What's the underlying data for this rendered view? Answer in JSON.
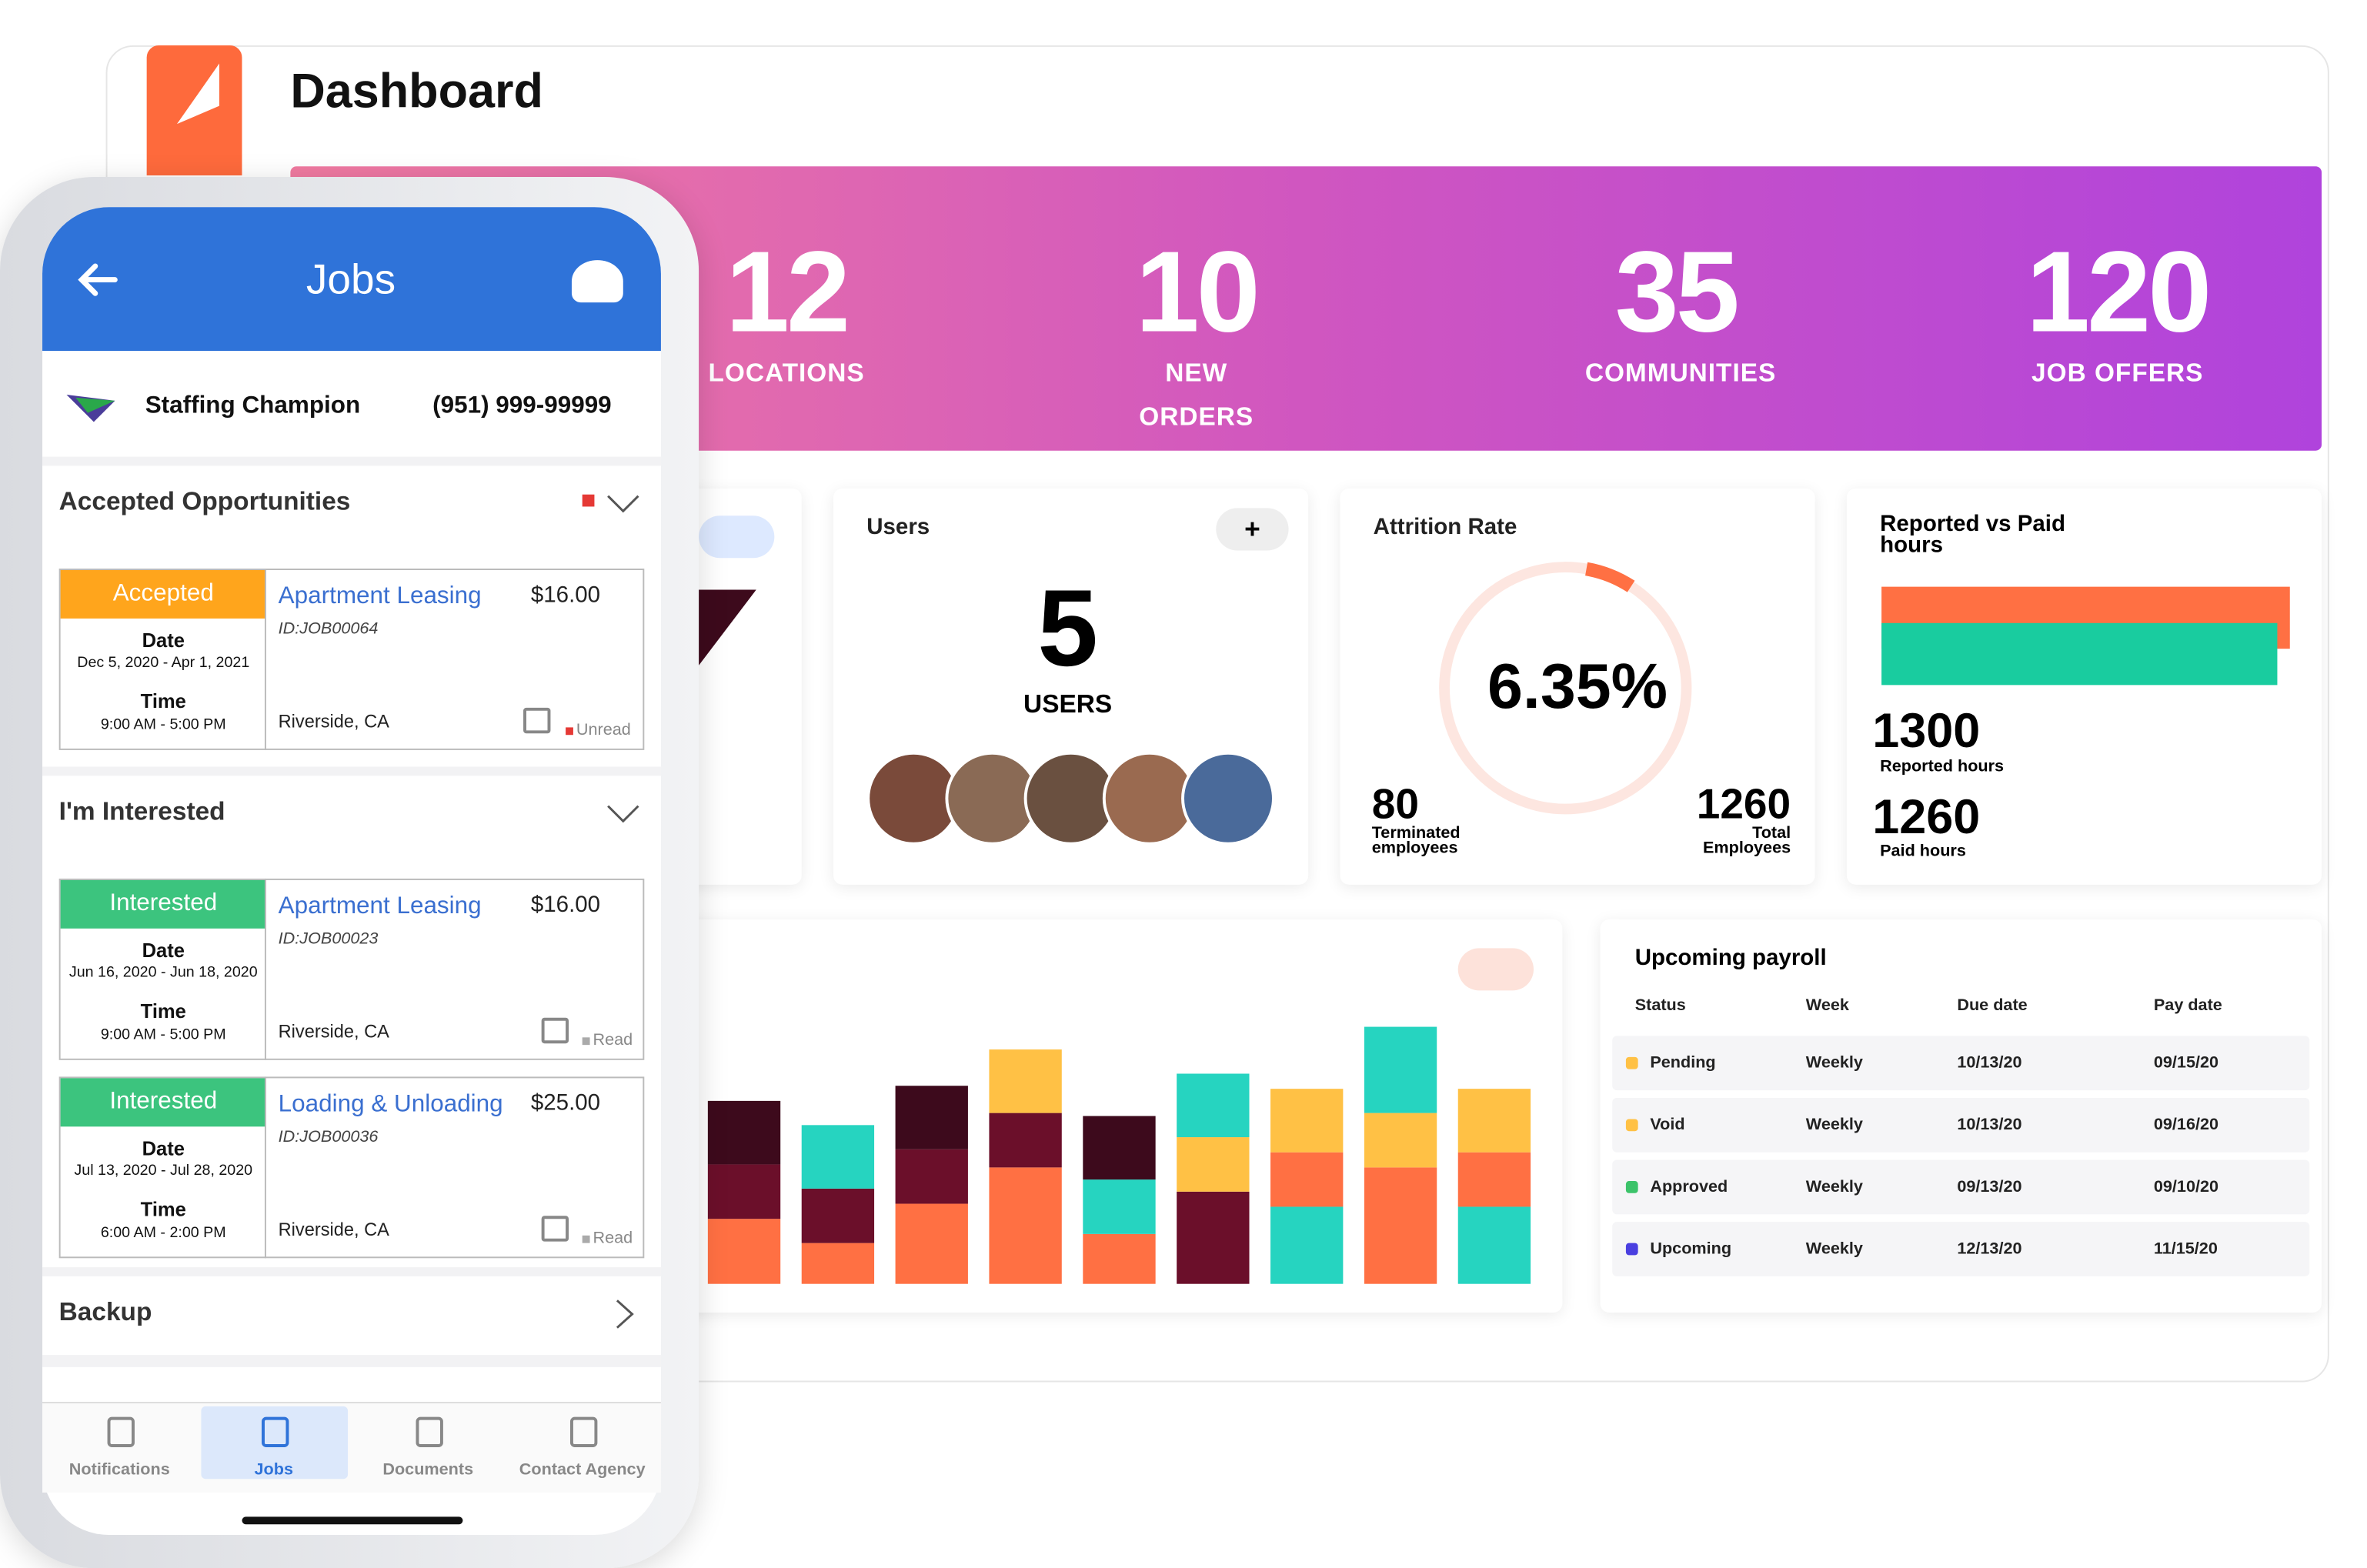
{
  "dashboard": {
    "title": "Dashboard",
    "stats": [
      {
        "value": 12,
        "label": "LOCATIONS"
      },
      {
        "value": 10,
        "label": "NEW ORDERS"
      },
      {
        "value": 35,
        "label": "COMMUNITIES"
      },
      {
        "value": 120,
        "label": "JOB OFFERS"
      }
    ],
    "users": {
      "title": "Users",
      "add": "+",
      "count": 5,
      "label": "USERS"
    },
    "attrition": {
      "title": "Attrition Rate",
      "rate": 6.35,
      "rate_label": "6.35%",
      "terminated": 80,
      "terminated_label": "Terminated employees",
      "total": 1260,
      "total_label": "Total Employees"
    },
    "hours": {
      "title": "Reported vs Paid hours",
      "reported": 1300,
      "reported_label": "Reported hours",
      "reported_color": "#ff7043",
      "paid": 1260,
      "paid_label": "Paid hours",
      "paid_color": "#19cc9f"
    },
    "bar_chart": {
      "columns": [
        {
          "segments": [
            {
              "color": "#ff7043",
              "value": 43
            },
            {
              "color": "#6b0f2a",
              "value": 36
            },
            {
              "color": "#3d0a1c",
              "value": 42
            }
          ]
        },
        {
          "segments": [
            {
              "color": "#ff7043",
              "value": 27
            },
            {
              "color": "#6b0f2a",
              "value": 36
            },
            {
              "color": "#26d4c0",
              "value": 42
            }
          ]
        },
        {
          "segments": [
            {
              "color": "#ff7043",
              "value": 53
            },
            {
              "color": "#6b0f2a",
              "value": 36
            },
            {
              "color": "#3d0a1c",
              "value": 42
            }
          ]
        },
        {
          "segments": [
            {
              "color": "#ff7043",
              "value": 77
            },
            {
              "color": "#6b0f2a",
              "value": 36
            },
            {
              "color": "#ffc145",
              "value": 42
            }
          ]
        },
        {
          "segments": [
            {
              "color": "#ff7043",
              "value": 33
            },
            {
              "color": "#26d4c0",
              "value": 36
            },
            {
              "color": "#3d0a1c",
              "value": 42
            }
          ]
        },
        {
          "segments": [
            {
              "color": "#6b0f2a",
              "value": 61
            },
            {
              "color": "#ffc145",
              "value": 36
            },
            {
              "color": "#26d4c0",
              "value": 42
            }
          ]
        },
        {
          "segments": [
            {
              "color": "#26d4c0",
              "value": 51
            },
            {
              "color": "#ff7043",
              "value": 36
            },
            {
              "color": "#ffc145",
              "value": 42
            }
          ]
        },
        {
          "segments": [
            {
              "color": "#ff7043",
              "value": 77
            },
            {
              "color": "#ffc145",
              "value": 36
            },
            {
              "color": "#26d4c0",
              "value": 57
            }
          ]
        },
        {
          "segments": [
            {
              "color": "#26d4c0",
              "value": 51
            },
            {
              "color": "#ff7043",
              "value": 36
            },
            {
              "color": "#ffc145",
              "value": 42
            }
          ]
        }
      ]
    },
    "payroll": {
      "title": "Upcoming payroll",
      "headers": [
        "Status",
        "Week",
        "Due date",
        "Pay date"
      ],
      "rows": [
        {
          "color": "#ffc145",
          "cells": [
            "Pending",
            "Weekly",
            "10/13/20",
            "09/15/20"
          ]
        },
        {
          "color": "#ffc145",
          "cells": [
            "Void",
            "Weekly",
            "10/13/20",
            "09/16/20"
          ]
        },
        {
          "color": "#3cc36a",
          "cells": [
            "Approved",
            "Weekly",
            "09/13/20",
            "09/10/20"
          ]
        },
        {
          "color": "#4a3fe0",
          "cells": [
            "Upcoming",
            "Weekly",
            "12/13/20",
            "11/15/20"
          ]
        }
      ]
    }
  },
  "phone": {
    "title": "Jobs",
    "company": "Staffing Champion",
    "phone": "(951) 999-99999",
    "sections": [
      {
        "title": "Accepted Opportunities",
        "jobs": [
          {
            "status": "Accepted",
            "color": "#ffa51c",
            "name": "Apartment Leasing",
            "rate": "$16.00",
            "id": "ID:JOB00064",
            "date_label": "Date",
            "date": "Dec 5, 2020 - Apr 1, 2021",
            "time_label": "Time",
            "time": "9:00 AM - 5:00 PM",
            "location": "Riverside, CA",
            "read": "Unread"
          }
        ]
      },
      {
        "title": "I'm Interested",
        "jobs": [
          {
            "status": "Interested",
            "color": "#3cc47e",
            "name": "Apartment Leasing",
            "rate": "$16.00",
            "id": "ID:JOB00023",
            "date_label": "Date",
            "date": "Jun 16, 2020 - Jun 18, 2020",
            "time_label": "Time",
            "time": "9:00 AM - 5:00 PM",
            "location": "Riverside, CA",
            "read": "Read"
          },
          {
            "status": "Interested",
            "color": "#3cc47e",
            "name": "Loading & Unloading",
            "rate": "$25.00",
            "id": "ID:JOB00036",
            "date_label": "Date",
            "date": "Jul 13, 2020 - Jul 28, 2020",
            "time_label": "Time",
            "time": "6:00 AM - 2:00 PM",
            "location": "Riverside, CA",
            "read": "Read"
          }
        ]
      },
      {
        "title": "Backup",
        "jobs": []
      }
    ],
    "nav": [
      "Notifications",
      "Jobs",
      "Documents",
      "Contact Agency"
    ]
  }
}
